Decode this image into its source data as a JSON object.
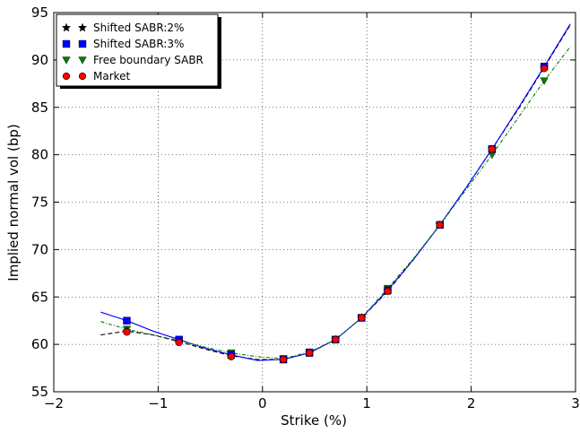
{
  "chart_data": {
    "type": "line",
    "title": "",
    "xlabel": "Strike (%)",
    "ylabel": "Implied normal vol (bp)",
    "xlim": [
      -2,
      3
    ],
    "ylim": [
      55,
      95
    ],
    "xticks": [
      -2,
      -1,
      0,
      1,
      2,
      3
    ],
    "yticks": [
      55,
      60,
      65,
      70,
      75,
      80,
      85,
      90,
      95
    ],
    "xtick_labels": [
      "−2",
      "−1",
      "0",
      "1",
      "2",
      "3"
    ],
    "ytick_labels": [
      "55",
      "60",
      "65",
      "70",
      "75",
      "80",
      "85",
      "90",
      "95"
    ],
    "grid": true,
    "legend_position": "top-left",
    "series": [
      {
        "name": "Shifted SABR:2%",
        "color": "#000000",
        "line_style": "dashed",
        "marker": "star",
        "marker_x": [
          -1.3,
          -0.8,
          -0.3,
          0.2,
          0.45,
          0.7,
          0.95,
          1.2,
          1.7,
          2.2,
          2.7
        ],
        "marker_y": [
          61.4,
          60.3,
          58.8,
          58.4,
          59.1,
          60.5,
          62.8,
          65.6,
          72.6,
          80.6,
          89.2
        ],
        "curve_x": [
          -1.55,
          -1.3,
          -1.05,
          -0.8,
          -0.55,
          -0.3,
          -0.05,
          0.2,
          0.45,
          0.7,
          0.95,
          1.2,
          1.45,
          1.7,
          1.95,
          2.2,
          2.45,
          2.7,
          2.95
        ],
        "curve_y": [
          61.0,
          61.4,
          61.0,
          60.3,
          59.5,
          58.8,
          58.4,
          58.4,
          59.1,
          60.5,
          62.8,
          65.6,
          69.0,
          72.6,
          76.5,
          80.6,
          84.8,
          89.2,
          93.7
        ]
      },
      {
        "name": "Shifted SABR:3%",
        "color": "#0000ff",
        "line_style": "solid",
        "marker": "square",
        "marker_x": [
          -1.3,
          -0.8,
          -0.3,
          0.2,
          0.45,
          0.7,
          0.95,
          1.2,
          1.7,
          2.2,
          2.7
        ],
        "marker_y": [
          62.5,
          60.5,
          58.9,
          58.4,
          59.1,
          60.5,
          62.8,
          65.7,
          72.6,
          80.6,
          89.3
        ],
        "curve_x": [
          -1.55,
          -1.3,
          -1.05,
          -0.8,
          -0.55,
          -0.3,
          -0.05,
          0.2,
          0.45,
          0.7,
          0.95,
          1.2,
          1.45,
          1.7,
          1.95,
          2.2,
          2.45,
          2.7,
          2.95
        ],
        "curve_y": [
          63.4,
          62.5,
          61.4,
          60.5,
          59.6,
          58.9,
          58.3,
          58.4,
          59.1,
          60.5,
          62.8,
          65.7,
          69.0,
          72.6,
          76.5,
          80.6,
          84.9,
          89.3,
          93.8
        ]
      },
      {
        "name": "Free boundary SABR",
        "color": "#007f00",
        "line_style": "dashdot",
        "marker": "triangle-down",
        "marker_x": [
          -1.3,
          -0.8,
          -0.3,
          0.2,
          0.45,
          0.7,
          0.95,
          1.2,
          1.7,
          2.2,
          2.7
        ],
        "marker_y": [
          61.6,
          60.4,
          59.1,
          58.5,
          59.2,
          60.5,
          62.8,
          65.9,
          72.6,
          80.0,
          87.8
        ],
        "curve_x": [
          -1.55,
          -1.3,
          -1.05,
          -0.8,
          -0.55,
          -0.3,
          -0.05,
          0.2,
          0.45,
          0.7,
          0.95,
          1.2,
          1.45,
          1.7,
          1.95,
          2.2,
          2.45,
          2.7,
          2.95
        ],
        "curve_y": [
          62.4,
          61.6,
          61.0,
          60.4,
          59.7,
          59.1,
          58.7,
          58.5,
          59.2,
          60.5,
          62.8,
          65.9,
          69.1,
          72.6,
          76.3,
          80.0,
          83.9,
          87.8,
          91.4
        ]
      },
      {
        "name": "Market",
        "color": "#ff0000",
        "line_style": "none",
        "marker": "circle",
        "marker_x": [
          -1.3,
          -0.8,
          -0.3,
          0.2,
          0.45,
          0.7,
          0.95,
          1.2,
          1.7,
          2.2,
          2.7
        ],
        "marker_y": [
          61.3,
          60.2,
          58.7,
          58.4,
          59.1,
          60.5,
          62.8,
          65.6,
          72.6,
          80.6,
          89.1
        ]
      }
    ]
  }
}
